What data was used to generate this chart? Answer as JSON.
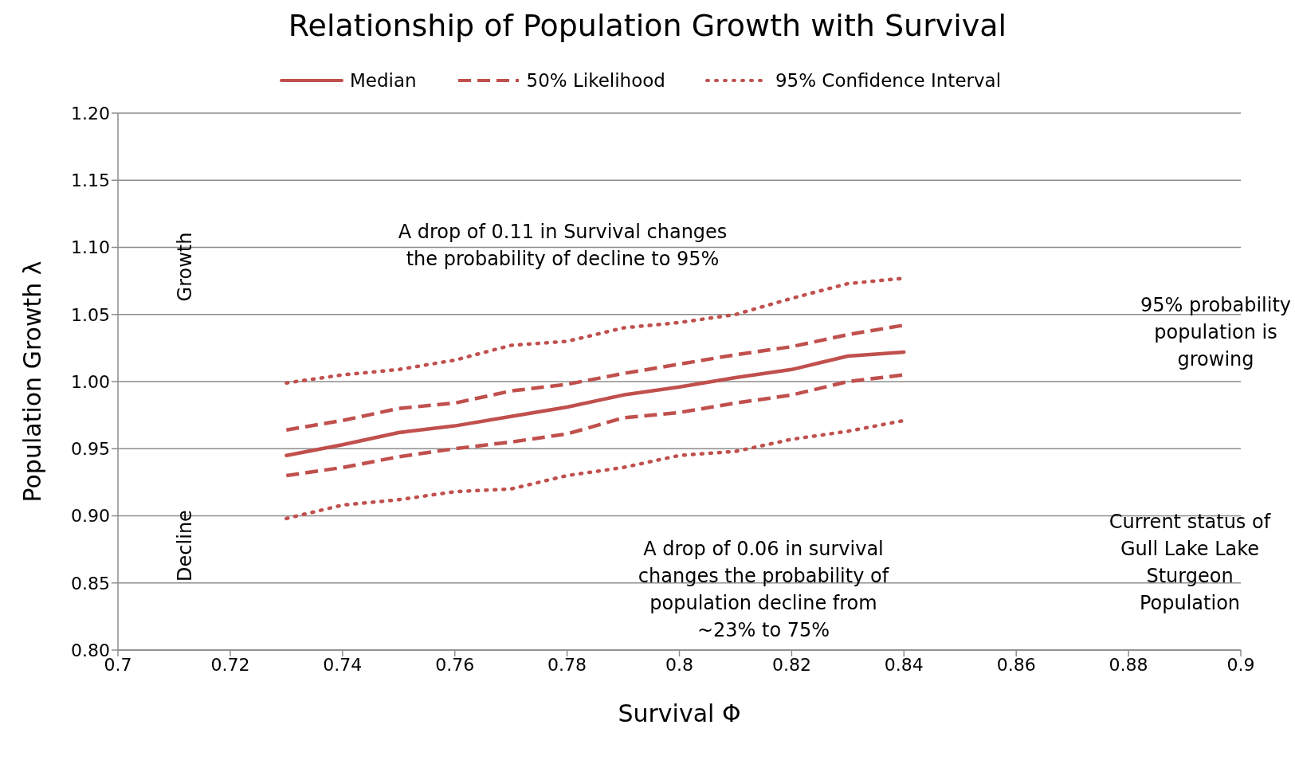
{
  "chart_data": {
    "type": "line",
    "title": "Relationship of Population Growth with Survival",
    "xlabel": "Survival Φ",
    "ylabel": "Population Growth λ",
    "x": [
      0.73,
      0.74,
      0.75,
      0.76,
      0.77,
      0.78,
      0.79,
      0.8,
      0.81,
      0.82,
      0.83,
      0.84
    ],
    "series": [
      {
        "name": "Median",
        "color": "#c0504d",
        "line_style": "solid",
        "values": [
          0.945,
          0.953,
          0.962,
          0.967,
          0.974,
          0.981,
          0.99,
          0.996,
          1.003,
          1.009,
          1.019,
          1.022
        ]
      },
      {
        "name": "50% Likelihood",
        "color": "#c0504d",
        "line_style": "dashed",
        "values": [
          0.964,
          0.971,
          0.98,
          0.984,
          0.993,
          0.998,
          1.006,
          1.013,
          1.02,
          1.026,
          1.035,
          1.042
        ]
      },
      {
        "color": "#c0504d",
        "line_style": "dashed",
        "values": [
          0.93,
          0.936,
          0.944,
          0.95,
          0.955,
          0.961,
          0.973,
          0.977,
          0.984,
          0.99,
          1.0,
          1.005
        ]
      },
      {
        "name": "95% Confidence Interval",
        "color": "#c0504d",
        "line_style": "dotted",
        "values": [
          0.999,
          1.005,
          1.009,
          1.016,
          1.027,
          1.03,
          1.04,
          1.044,
          1.05,
          1.062,
          1.073,
          1.077
        ]
      },
      {
        "color": "#c0504d",
        "line_style": "dotted",
        "values": [
          0.898,
          0.908,
          0.912,
          0.918,
          0.92,
          0.93,
          0.936,
          0.945,
          0.948,
          0.957,
          0.963,
          0.971
        ]
      }
    ],
    "xlim": [
      0.7,
      0.9
    ],
    "xticks": [
      0.7,
      0.72,
      0.74,
      0.76,
      0.78,
      0.8,
      0.82,
      0.84,
      0.86,
      0.88,
      0.9
    ],
    "ylim": [
      0.8,
      1.2
    ],
    "yticks": [
      {
        "value": 0.8,
        "label": "0.80"
      },
      {
        "value": 0.85,
        "label": "0.85"
      },
      {
        "value": 0.9,
        "label": "0.90"
      },
      {
        "value": 0.95,
        "label": "0.95"
      },
      {
        "value": 1.0,
        "label": "1.00"
      },
      {
        "value": 1.05,
        "label": "1.05"
      },
      {
        "value": 1.1,
        "label": "1.10"
      },
      {
        "value": 1.15,
        "label": "1.15"
      },
      {
        "value": 1.2,
        "label": "1.20"
      }
    ],
    "grid": "y",
    "legend": "top",
    "marker": "none",
    "annotations": [
      "A drop of 0.11 in Survival changes the probability of decline to 95%",
      "A drop of 0.06 in survival changes the probability of population decline from ~23% to 75%",
      "95% probability population is growing",
      "Current status of Gull Lake Lake Sturgeon Population",
      "Growth",
      "Decline"
    ]
  }
}
